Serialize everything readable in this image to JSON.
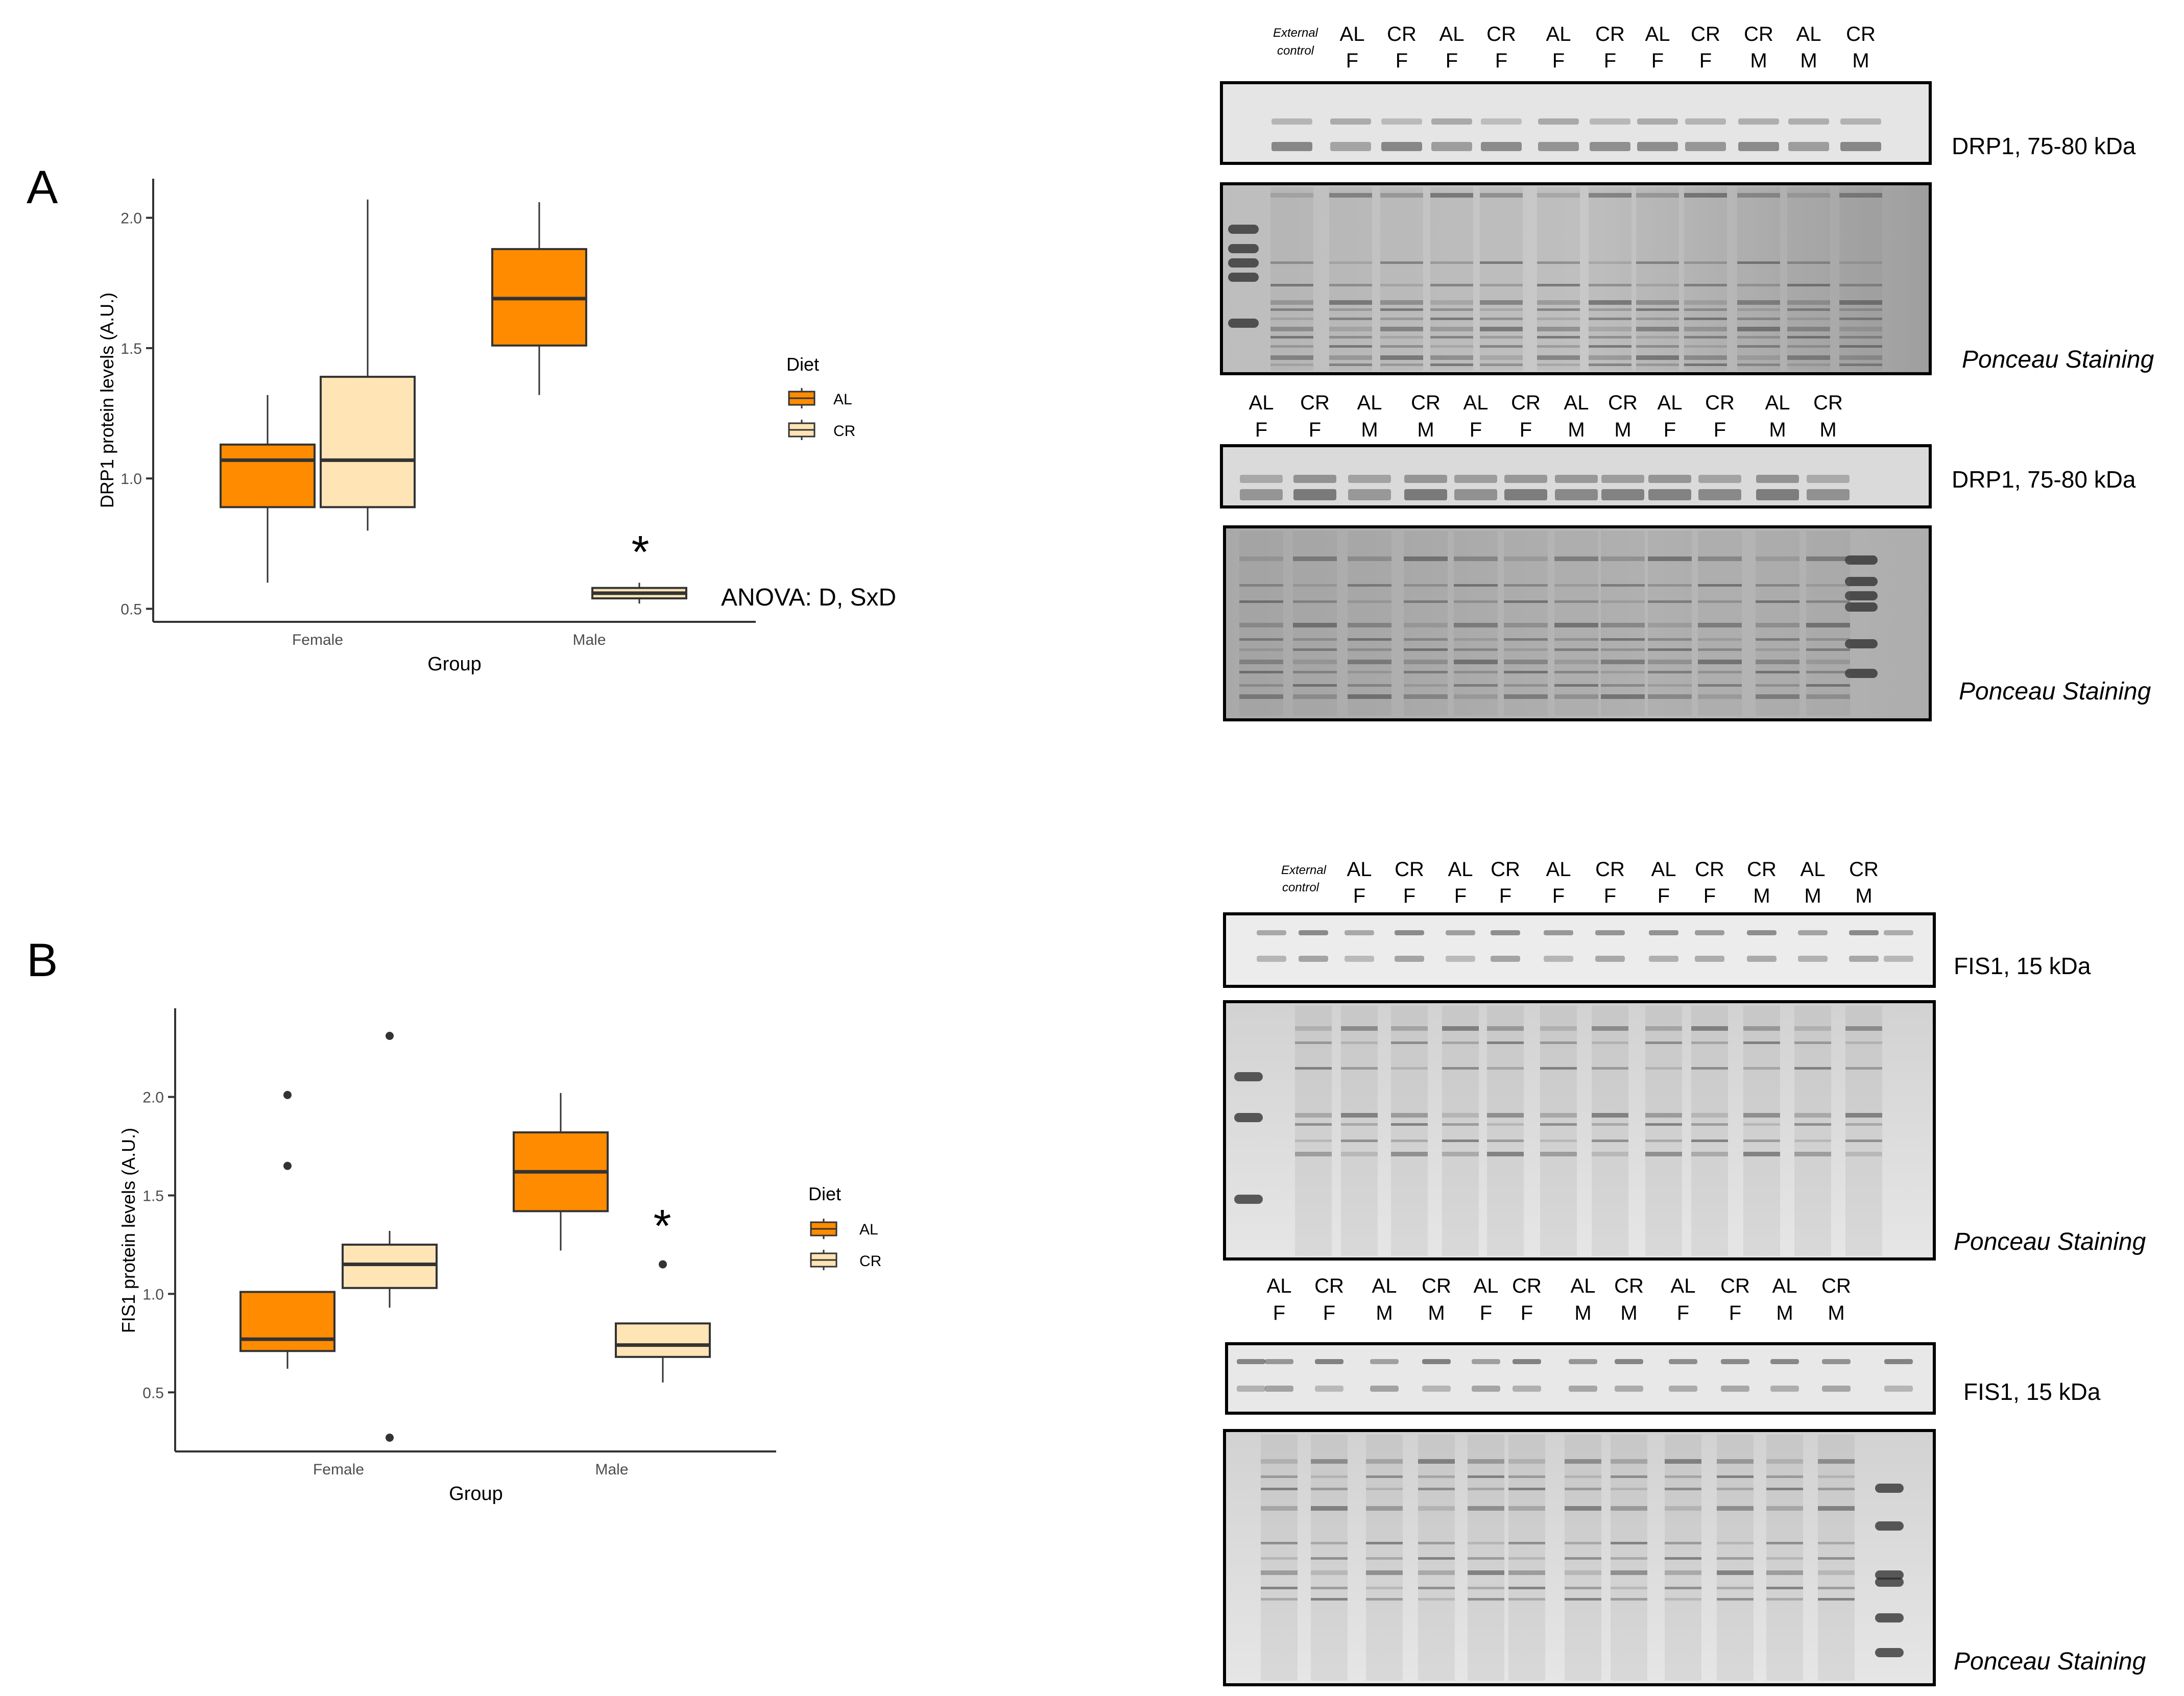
{
  "panels": {
    "a": {
      "label": "A"
    },
    "b": {
      "label": "B"
    }
  },
  "colors": {
    "al_fill": "#FF8C00",
    "cr_fill": "#FFE4B5",
    "box_stroke": "#333333"
  },
  "chart_data": [
    {
      "type": "boxplot",
      "panel": "A",
      "xlabel": "Group",
      "ylabel": "DRP1 protein levels (A.U.)",
      "categories": [
        "Female",
        "Male"
      ],
      "yticks": [
        "0.5",
        "1.0",
        "1.5",
        "2.0"
      ],
      "ylim": [
        0.45,
        2.15
      ],
      "legend": {
        "title": "Diet",
        "entries": [
          "AL",
          "CR"
        ],
        "position": "right"
      },
      "series": [
        {
          "name": "AL",
          "boxes": [
            {
              "group": "Female",
              "min": 0.6,
              "q1": 0.89,
              "median": 1.07,
              "q3": 1.13,
              "max": 1.32,
              "outliers": []
            },
            {
              "group": "Male",
              "min": 1.32,
              "q1": 1.51,
              "median": 1.69,
              "q3": 1.88,
              "max": 2.06,
              "outliers": []
            }
          ]
        },
        {
          "name": "CR",
          "boxes": [
            {
              "group": "Female",
              "min": 0.8,
              "q1": 0.89,
              "median": 1.07,
              "q3": 1.39,
              "max": 2.07,
              "outliers": []
            },
            {
              "group": "Male",
              "min": 0.52,
              "q1": 0.54,
              "median": 0.56,
              "q3": 0.58,
              "max": 0.6,
              "outliers": []
            }
          ]
        }
      ],
      "annotations": {
        "star": "*",
        "anova": "ANOVA: D, SxD"
      }
    },
    {
      "type": "boxplot",
      "panel": "B",
      "xlabel": "Group",
      "ylabel": "FIS1 protein levels (A.U.)",
      "categories": [
        "Female",
        "Male"
      ],
      "yticks": [
        "0.5",
        "1.0",
        "1.5",
        "2.0"
      ],
      "ylim": [
        0.2,
        2.45
      ],
      "legend": {
        "title": "Diet",
        "entries": [
          "AL",
          "CR"
        ],
        "position": "right"
      },
      "series": [
        {
          "name": "AL",
          "boxes": [
            {
              "group": "Female",
              "min": 0.62,
              "q1": 0.71,
              "median": 0.77,
              "q3": 1.01,
              "max": 1.01,
              "outliers": [
                1.65,
                2.01
              ]
            },
            {
              "group": "Male",
              "min": 1.22,
              "q1": 1.42,
              "median": 1.62,
              "q3": 1.82,
              "max": 2.02,
              "outliers": []
            }
          ]
        },
        {
          "name": "CR",
          "boxes": [
            {
              "group": "Female",
              "min": 0.93,
              "q1": 1.03,
              "median": 1.15,
              "q3": 1.25,
              "max": 1.32,
              "outliers": [
                0.27,
                2.31
              ]
            },
            {
              "group": "Male",
              "min": 0.55,
              "q1": 0.68,
              "median": 0.74,
              "q3": 0.85,
              "max": 0.85,
              "outliers": [
                1.15
              ]
            }
          ]
        }
      ],
      "annotations": {
        "star": "*"
      }
    }
  ],
  "blots": {
    "a_top_labels": [
      {
        "l1": "AL",
        "l2": "F"
      },
      {
        "l1": "CR",
        "l2": "F"
      },
      {
        "l1": "AL",
        "l2": "F"
      },
      {
        "l1": "CR",
        "l2": "F"
      },
      {
        "l1": "AL",
        "l2": "F"
      },
      {
        "l1": "CR",
        "l2": "F"
      },
      {
        "l1": "AL",
        "l2": "F"
      },
      {
        "l1": "CR",
        "l2": "F"
      },
      {
        "l1": "CR",
        "l2": "M"
      },
      {
        "l1": "AL",
        "l2": "M"
      },
      {
        "l1": "CR",
        "l2": "M"
      }
    ],
    "a_mid_labels": [
      {
        "l1": "AL",
        "l2": "F"
      },
      {
        "l1": "CR",
        "l2": "F"
      },
      {
        "l1": "AL",
        "l2": "M"
      },
      {
        "l1": "CR",
        "l2": "M"
      },
      {
        "l1": "AL",
        "l2": "F"
      },
      {
        "l1": "CR",
        "l2": "F"
      },
      {
        "l1": "AL",
        "l2": "M"
      },
      {
        "l1": "CR",
        "l2": "M"
      },
      {
        "l1": "AL",
        "l2": "F"
      },
      {
        "l1": "CR",
        "l2": "F"
      },
      {
        "l1": "AL",
        "l2": "M"
      },
      {
        "l1": "CR",
        "l2": "M"
      }
    ],
    "b_top_labels": [
      {
        "l1": "AL",
        "l2": "F"
      },
      {
        "l1": "CR",
        "l2": "F"
      },
      {
        "l1": "AL",
        "l2": "F"
      },
      {
        "l1": "CR",
        "l2": "F"
      },
      {
        "l1": "AL",
        "l2": "F"
      },
      {
        "l1": "CR",
        "l2": "F"
      },
      {
        "l1": "AL",
        "l2": "F"
      },
      {
        "l1": "CR",
        "l2": "F"
      },
      {
        "l1": "CR",
        "l2": "M"
      },
      {
        "l1": "AL",
        "l2": "M"
      },
      {
        "l1": "CR",
        "l2": "M"
      }
    ],
    "b_mid_labels": [
      {
        "l1": "AL",
        "l2": "F"
      },
      {
        "l1": "CR",
        "l2": "F"
      },
      {
        "l1": "AL",
        "l2": "M"
      },
      {
        "l1": "CR",
        "l2": "M"
      },
      {
        "l1": "AL",
        "l2": "F"
      },
      {
        "l1": "CR",
        "l2": "F"
      },
      {
        "l1": "AL",
        "l2": "M"
      },
      {
        "l1": "CR",
        "l2": "M"
      },
      {
        "l1": "AL",
        "l2": "F"
      },
      {
        "l1": "CR",
        "l2": "F"
      },
      {
        "l1": "AL",
        "l2": "M"
      },
      {
        "l1": "CR",
        "l2": "M"
      }
    ],
    "external_control": {
      "line1": "External",
      "line2": "control"
    },
    "drp1_label": "DRP1, 75-80 kDa",
    "fis1_label": "FIS1, 15 kDa",
    "ponceau_label": "Ponceau Staining"
  }
}
